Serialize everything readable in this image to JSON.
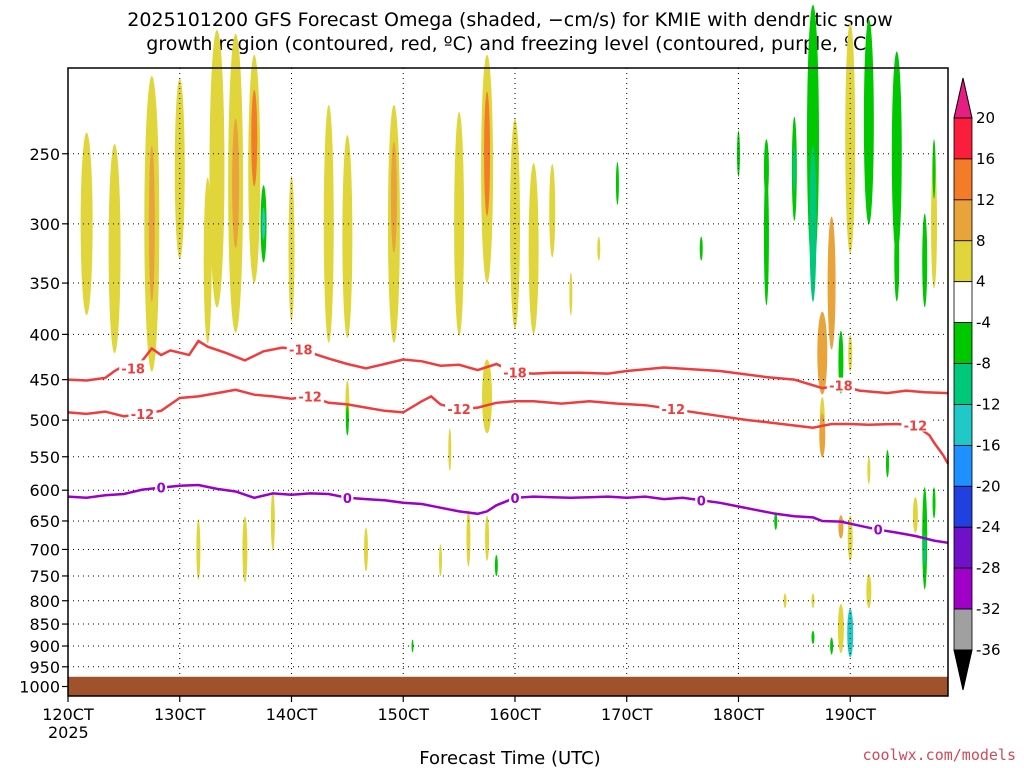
{
  "title_line1": "2025101200 GFS Forecast Omega (shaded, −cm/s) for KMIE with dendritic snow",
  "title_line2": "growth region (contoured, red, ºC) and freezing level (contoured, purple, ºC)",
  "credit": "coolwx.com/models",
  "chart_data": {
    "type": "heatmap",
    "xlabel": "Forecast Time (UTC)",
    "x_ticks": [
      "120CT",
      "130CT",
      "140CT",
      "150CT",
      "160CT",
      "170CT",
      "180CT",
      "190CT"
    ],
    "x_sublabel": "2025",
    "x_range_hours": [
      0,
      189
    ],
    "y_scale": "log-pressure",
    "y_ticks": [
      250,
      300,
      350,
      400,
      450,
      500,
      550,
      600,
      650,
      700,
      750,
      800,
      850,
      900,
      950,
      1000
    ],
    "y_range_hPa": [
      200,
      1025
    ],
    "colorbar": {
      "levels": [
        20,
        16,
        12,
        8,
        4,
        -4,
        -8,
        -12,
        -16,
        -20,
        -24,
        -28,
        -32,
        -36
      ],
      "colors": [
        "#fa1e3c",
        "#f47c28",
        "#e8a33a",
        "#e0d63c",
        "#ffffff",
        "#00c800",
        "#00c87a",
        "#20c8c8",
        "#1e90ff",
        "#2040e0",
        "#7010c8",
        "#a000c8",
        "#a0a0a0"
      ],
      "top_arrow_color": "#e61e82",
      "bottom_arrow_color": "#000000"
    },
    "contours": [
      {
        "name": "-18",
        "color": "#f03c3c",
        "labels": [
          "-18",
          "-18",
          "-18",
          "-18"
        ],
        "points": [
          [
            0,
            450
          ],
          [
            4,
            451
          ],
          [
            8,
            448
          ],
          [
            10,
            440
          ],
          [
            12,
            434
          ],
          [
            14,
            437
          ],
          [
            16,
            428
          ],
          [
            18,
            415
          ],
          [
            20,
            422
          ],
          [
            22,
            417
          ],
          [
            26,
            422
          ],
          [
            28,
            407
          ],
          [
            30,
            413
          ],
          [
            34,
            420
          ],
          [
            38,
            428
          ],
          [
            42,
            418
          ],
          [
            46,
            414
          ],
          [
            50,
            416
          ],
          [
            56,
            426
          ],
          [
            60,
            432
          ],
          [
            64,
            437
          ],
          [
            68,
            432
          ],
          [
            72,
            427
          ],
          [
            76,
            429
          ],
          [
            80,
            434
          ],
          [
            84,
            433
          ],
          [
            88,
            439
          ],
          [
            92,
            432
          ],
          [
            96,
            442
          ],
          [
            100,
            443
          ],
          [
            104,
            442
          ],
          [
            110,
            442
          ],
          [
            116,
            443
          ],
          [
            120,
            440
          ],
          [
            128,
            436
          ],
          [
            134,
            438
          ],
          [
            140,
            440
          ],
          [
            150,
            447
          ],
          [
            156,
            450
          ],
          [
            162,
            460
          ],
          [
            166,
            457
          ],
          [
            170,
            463
          ],
          [
            176,
            466
          ],
          [
            180,
            463
          ],
          [
            184,
            465
          ],
          [
            189,
            466
          ]
        ]
      },
      {
        "name": "-12",
        "color": "#f03c3c",
        "labels": [
          "-12",
          "-12",
          "-12",
          "-12",
          "-12"
        ],
        "points": [
          [
            0,
            490
          ],
          [
            4,
            492
          ],
          [
            8,
            489
          ],
          [
            12,
            495
          ],
          [
            16,
            492
          ],
          [
            20,
            488
          ],
          [
            22,
            480
          ],
          [
            24,
            472
          ],
          [
            28,
            470
          ],
          [
            32,
            466
          ],
          [
            36,
            462
          ],
          [
            40,
            468
          ],
          [
            44,
            470
          ],
          [
            48,
            473
          ],
          [
            52,
            470
          ],
          [
            56,
            478
          ],
          [
            60,
            480
          ],
          [
            64,
            484
          ],
          [
            68,
            488
          ],
          [
            72,
            490
          ],
          [
            76,
            476
          ],
          [
            78,
            470
          ],
          [
            80,
            480
          ],
          [
            84,
            486
          ],
          [
            88,
            484
          ],
          [
            92,
            478
          ],
          [
            96,
            476
          ],
          [
            100,
            476
          ],
          [
            106,
            479
          ],
          [
            112,
            476
          ],
          [
            118,
            479
          ],
          [
            124,
            481
          ],
          [
            130,
            486
          ],
          [
            138,
            493
          ],
          [
            146,
            500
          ],
          [
            152,
            504
          ],
          [
            156,
            507
          ],
          [
            160,
            510
          ],
          [
            164,
            505
          ],
          [
            168,
            505
          ],
          [
            172,
            506
          ],
          [
            178,
            505
          ],
          [
            182,
            507
          ],
          [
            185,
            520
          ],
          [
            186,
            530
          ],
          [
            188,
            548
          ],
          [
            189,
            560
          ]
        ]
      },
      {
        "name": "0",
        "color": "#9a00c8",
        "labels": [
          "0",
          "0",
          "0",
          "0",
          "0"
        ],
        "points": [
          [
            0,
            610
          ],
          [
            4,
            612
          ],
          [
            8,
            608
          ],
          [
            12,
            606
          ],
          [
            16,
            599
          ],
          [
            20,
            596
          ],
          [
            24,
            593
          ],
          [
            28,
            592
          ],
          [
            32,
            598
          ],
          [
            36,
            602
          ],
          [
            40,
            612
          ],
          [
            44,
            605
          ],
          [
            48,
            607
          ],
          [
            52,
            605
          ],
          [
            56,
            606
          ],
          [
            60,
            612
          ],
          [
            64,
            614
          ],
          [
            68,
            616
          ],
          [
            72,
            620
          ],
          [
            76,
            622
          ],
          [
            80,
            628
          ],
          [
            84,
            634
          ],
          [
            88,
            638
          ],
          [
            90,
            634
          ],
          [
            92,
            624
          ],
          [
            96,
            612
          ],
          [
            100,
            610
          ],
          [
            104,
            611
          ],
          [
            108,
            612
          ],
          [
            112,
            611
          ],
          [
            116,
            610
          ],
          [
            120,
            612
          ],
          [
            124,
            610
          ],
          [
            128,
            614
          ],
          [
            132,
            612
          ],
          [
            136,
            616
          ],
          [
            140,
            620
          ],
          [
            144,
            626
          ],
          [
            148,
            632
          ],
          [
            152,
            638
          ],
          [
            156,
            642
          ],
          [
            160,
            644
          ],
          [
            162,
            650
          ],
          [
            166,
            651
          ],
          [
            170,
            658
          ],
          [
            174,
            665
          ],
          [
            178,
            670
          ],
          [
            182,
            676
          ],
          [
            184,
            680
          ],
          [
            186,
            684
          ],
          [
            189,
            688
          ]
        ]
      }
    ],
    "surface_color": "#a0522d"
  }
}
